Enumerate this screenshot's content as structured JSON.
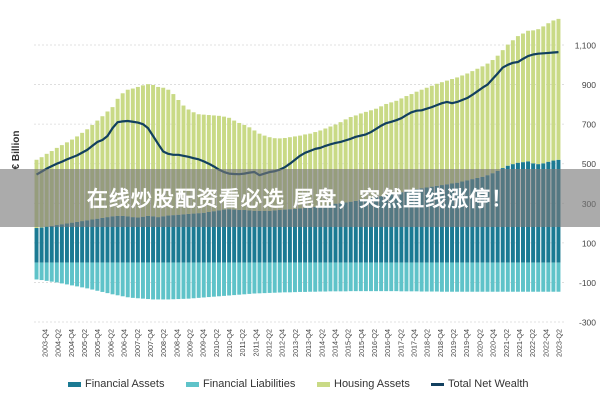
{
  "chart_data": {
    "type": "bar",
    "ylabel": "€ Billion",
    "yticks": [
      1100,
      900,
      700,
      500,
      300,
      100,
      -100,
      -300
    ],
    "ylim": [
      -300,
      1200
    ],
    "grid": true,
    "legend_position": "bottom",
    "x_tick_labels": [
      "2003-Q4",
      "2004-Q2",
      "2004-Q4",
      "2005-Q2",
      "2005-Q4",
      "2006-Q2",
      "2006-Q4",
      "2007-Q2",
      "2007-Q4",
      "2008-Q2",
      "2008-Q4",
      "2009-Q2",
      "2009-Q4",
      "2010-Q2",
      "2010-Q4",
      "2011-Q2",
      "2011-Q4",
      "2012-Q2",
      "2012-Q4",
      "2013-Q2",
      "2013-Q4",
      "2014-Q2",
      "2014-Q4",
      "2015-Q2",
      "2015-Q4",
      "2016-Q2",
      "2016-Q4",
      "2017-Q2",
      "2017-Q4",
      "2018-Q2",
      "2018-Q4",
      "2019-Q2",
      "2019-Q4",
      "2020-Q2",
      "2020-Q4",
      "2021-Q2",
      "2021-Q4",
      "2022-Q2",
      "2022-Q4",
      "2023-Q2"
    ],
    "series": [
      {
        "name": "Financial Assets",
        "color": "#1b7a93",
        "values": [
          175,
          178,
          182,
          186,
          190,
          194,
          198,
          202,
          206,
          210,
          214,
          218,
          222,
          226,
          230,
          234,
          236,
          236,
          234,
          230,
          228,
          232,
          236,
          234,
          230,
          234,
          238,
          240,
          242,
          244,
          246,
          248,
          250,
          252,
          256,
          260,
          264,
          268,
          270,
          268,
          266,
          266,
          264,
          262,
          262,
          262,
          262,
          264,
          266,
          268,
          270,
          272,
          274,
          276,
          278,
          282,
          286,
          290,
          294,
          298,
          300,
          304,
          308,
          312,
          318,
          322,
          326,
          330,
          336,
          342,
          346,
          350,
          356,
          362,
          366,
          372,
          376,
          380,
          384,
          388,
          392,
          396,
          400,
          404,
          410,
          416,
          422,
          428,
          434,
          442,
          452,
          464,
          478,
          490,
          498,
          505,
          508,
          512,
          502,
          498,
          502,
          510,
          516,
          520
        ]
      },
      {
        "name": "Financial Liabilities",
        "color": "#5fc3c9",
        "values": [
          -85,
          -88,
          -92,
          -96,
          -100,
          -105,
          -110,
          -115,
          -120,
          -125,
          -130,
          -136,
          -142,
          -148,
          -154,
          -160,
          -165,
          -170,
          -175,
          -178,
          -180,
          -182,
          -184,
          -186,
          -186,
          -186,
          -186,
          -185,
          -184,
          -183,
          -182,
          -180,
          -178,
          -176,
          -174,
          -172,
          -170,
          -168,
          -166,
          -164,
          -162,
          -160,
          -158,
          -156,
          -155,
          -154,
          -153,
          -152,
          -151,
          -150,
          -150,
          -149,
          -148,
          -148,
          -147,
          -147,
          -146,
          -146,
          -145,
          -145,
          -145,
          -145,
          -144,
          -144,
          -144,
          -144,
          -144,
          -144,
          -144,
          -144,
          -144,
          -144,
          -145,
          -145,
          -145,
          -145,
          -146,
          -146,
          -146,
          -146,
          -147,
          -147,
          -147,
          -147,
          -147,
          -147,
          -147,
          -147,
          -147,
          -147,
          -147,
          -147,
          -147,
          -147,
          -147,
          -147,
          -147,
          -147,
          -147,
          -147,
          -147,
          -147,
          -147,
          -147
        ]
      },
      {
        "name": "Housing Assets",
        "color": "#c9da86",
        "values": [
          345,
          355,
          368,
          378,
          390,
          400,
          410,
          420,
          432,
          446,
          460,
          478,
          496,
          514,
          534,
          552,
          592,
          620,
          640,
          650,
          660,
          664,
          666,
          664,
          658,
          650,
          636,
          612,
          580,
          550,
          528,
          512,
          500,
          496,
          490,
          484,
          478,
          470,
          462,
          450,
          440,
          430,
          420,
          406,
          390,
          380,
          372,
          365,
          362,
          362,
          364,
          366,
          368,
          372,
          374,
          378,
          382,
          388,
          394,
          400,
          410,
          420,
          428,
          432,
          436,
          440,
          444,
          448,
          454,
          460,
          464,
          468,
          474,
          480,
          486,
          492,
          498,
          504,
          510,
          516,
          520,
          524,
          528,
          532,
          536,
          540,
          546,
          552,
          558,
          564,
          572,
          582,
          596,
          612,
          626,
          640,
          650,
          660,
          672,
          682,
          692,
          700,
          708,
          712
        ]
      },
      {
        "name": "Total Net Wealth",
        "color": "#12405f",
        "values": [
          445,
          460,
          475,
          488,
          500,
          510,
          522,
          532,
          542,
          556,
          570,
          590,
          610,
          620,
          640,
          680,
          710,
          714,
          716,
          712,
          708,
          700,
          680,
          640,
          600,
          562,
          550,
          545,
          545,
          540,
          535,
          528,
          522,
          512,
          500,
          486,
          470,
          458,
          450,
          448,
          447,
          450,
          455,
          458,
          442,
          450,
          458,
          462,
          470,
          482,
          500,
          520,
          540,
          555,
          565,
          575,
          580,
          590,
          598,
          605,
          610,
          618,
          626,
          636,
          642,
          648,
          660,
          676,
          692,
          705,
          712,
          720,
          730,
          746,
          760,
          768,
          770,
          778,
          786,
          796,
          806,
          812,
          806,
          812,
          822,
          832,
          848,
          866,
          884,
          900,
          928,
          956,
          986,
          1000,
          1010,
          1014,
          1030,
          1044,
          1052,
          1056,
          1058,
          1060,
          1062,
          1064
        ]
      }
    ]
  },
  "banner_text": "在线炒股配资看必选 尾盘，突然直线涨停！"
}
